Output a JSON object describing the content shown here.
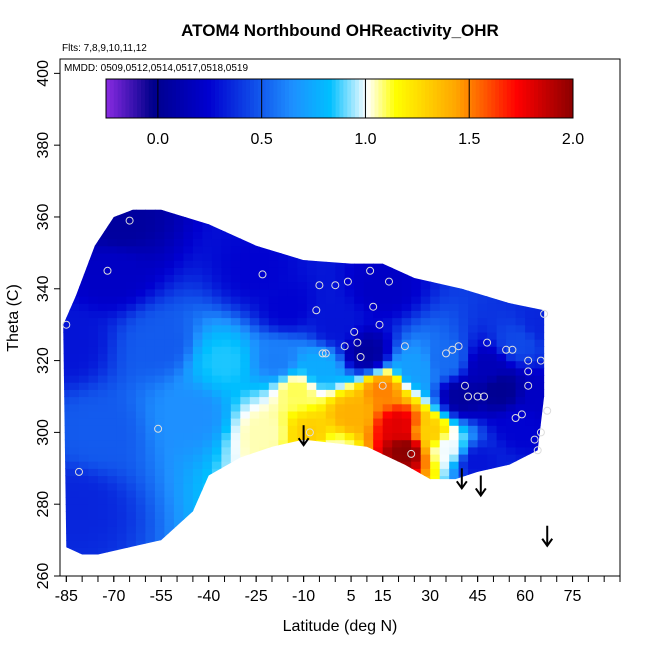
{
  "chart_data": {
    "type": "heatmap",
    "title": "ATOM4 Northbound OHReactivity_OHR",
    "subtitle_flights": "Flts: 7,8,9,10,11,12",
    "subtitle_dates": "MMDD: 0509,0512,0514,0517,0518,0519",
    "xlabel": "Latitude (deg N)",
    "ylabel": "Theta (C)",
    "xlim": [
      -87,
      90
    ],
    "ylim": [
      260,
      404
    ],
    "x_ticks": [
      -85,
      -70,
      -55,
      -40,
      -25,
      -10,
      5,
      15,
      30,
      45,
      60,
      75
    ],
    "x_tick_labels": [
      "-85",
      "-70",
      "-55",
      "-40",
      "-25",
      "-10",
      "5",
      "15",
      "30",
      "45",
      "60",
      "75"
    ],
    "y_ticks": [
      260,
      280,
      300,
      320,
      340,
      360,
      380,
      400
    ],
    "y_tick_labels": [
      "260",
      "280",
      "300",
      "320",
      "340",
      "360",
      "380",
      "400"
    ],
    "colorbar": {
      "range": [
        -0.25,
        2.0
      ],
      "ticks": [
        0.0,
        0.5,
        1.0,
        1.5,
        2.0
      ],
      "tick_labels": [
        "0.0",
        "0.5",
        "1.0",
        "1.5",
        "2.0"
      ],
      "colors": [
        "#8a2be2",
        "#00008b",
        "#0000d0",
        "#1e90ff",
        "#00bfff",
        "#ffffff",
        "#ffff00",
        "#ffa500",
        "#ff0000",
        "#8b0000"
      ]
    },
    "field_points": [
      {
        "lat": -85,
        "theta": 325,
        "value": 0.3
      },
      {
        "lat": -82,
        "theta": 280,
        "value": 0.35
      },
      {
        "lat": -75,
        "theta": 300,
        "value": 0.5
      },
      {
        "lat": -70,
        "theta": 345,
        "value": 0.2
      },
      {
        "lat": -68,
        "theta": 358,
        "value": 0.05
      },
      {
        "lat": -55,
        "theta": 325,
        "value": 0.5
      },
      {
        "lat": -45,
        "theta": 305,
        "value": 0.65
      },
      {
        "lat": -35,
        "theta": 320,
        "value": 0.85
      },
      {
        "lat": -25,
        "theta": 345,
        "value": 0.25
      },
      {
        "lat": -22,
        "theta": 300,
        "value": 1.05
      },
      {
        "lat": -18,
        "theta": 320,
        "value": 0.6
      },
      {
        "lat": -15,
        "theta": 335,
        "value": 0.25
      },
      {
        "lat": -12,
        "theta": 312,
        "value": 1.1
      },
      {
        "lat": -8,
        "theta": 300,
        "value": 1.3
      },
      {
        "lat": -5,
        "theta": 318,
        "value": 0.75
      },
      {
        "lat": 0,
        "theta": 295,
        "value": 1.05
      },
      {
        "lat": 0,
        "theta": 330,
        "value": 0.3
      },
      {
        "lat": 5,
        "theta": 305,
        "value": 1.4
      },
      {
        "lat": 10,
        "theta": 322,
        "value": 0.05
      },
      {
        "lat": 15,
        "theta": 312,
        "value": 1.5
      },
      {
        "lat": 15,
        "theta": 340,
        "value": 0.2
      },
      {
        "lat": 20,
        "theta": 302,
        "value": 1.8
      },
      {
        "lat": 22,
        "theta": 295,
        "value": 2.0
      },
      {
        "lat": 25,
        "theta": 318,
        "value": 0.7
      },
      {
        "lat": 30,
        "theta": 300,
        "value": 1.3
      },
      {
        "lat": 35,
        "theta": 296,
        "value": 1.0
      },
      {
        "lat": 35,
        "theta": 320,
        "value": 0.55
      },
      {
        "lat": 40,
        "theta": 310,
        "value": 0.05
      },
      {
        "lat": 45,
        "theta": 292,
        "value": 0.3
      },
      {
        "lat": 48,
        "theta": 318,
        "value": 0.15
      },
      {
        "lat": 52,
        "theta": 312,
        "value": 0.0
      },
      {
        "lat": 58,
        "theta": 302,
        "value": 0.25
      },
      {
        "lat": 58,
        "theta": 325,
        "value": 0.45
      },
      {
        "lat": 65,
        "theta": 310,
        "value": 0.2
      },
      {
        "lat": 65,
        "theta": 330,
        "value": 0.35
      }
    ],
    "domain_boundary": [
      [
        -86,
        330
      ],
      [
        -82,
        338
      ],
      [
        -76,
        352
      ],
      [
        -70,
        360
      ],
      [
        -64,
        362
      ],
      [
        -55,
        362
      ],
      [
        -40,
        358
      ],
      [
        -25,
        352
      ],
      [
        -10,
        348
      ],
      [
        5,
        347
      ],
      [
        15,
        347
      ],
      [
        25,
        343
      ],
      [
        40,
        340
      ],
      [
        55,
        336
      ],
      [
        66,
        334
      ],
      [
        66,
        310
      ],
      [
        64,
        295
      ],
      [
        55,
        291
      ],
      [
        45,
        289
      ],
      [
        38,
        287
      ],
      [
        30,
        287
      ],
      [
        22,
        291
      ],
      [
        10,
        296
      ],
      [
        0,
        297
      ],
      [
        -10,
        298
      ],
      [
        -20,
        296
      ],
      [
        -30,
        293
      ],
      [
        -40,
        288
      ],
      [
        -45,
        278
      ],
      [
        -55,
        270
      ],
      [
        -65,
        268
      ],
      [
        -75,
        266
      ],
      [
        -80,
        266
      ],
      [
        -85,
        268
      ]
    ],
    "observation_points": [
      {
        "lat": -85,
        "theta": 330
      },
      {
        "lat": -81,
        "theta": 289
      },
      {
        "lat": -72,
        "theta": 345
      },
      {
        "lat": -65,
        "theta": 359
      },
      {
        "lat": -56,
        "theta": 301
      },
      {
        "lat": -23,
        "theta": 344
      },
      {
        "lat": -5,
        "theta": 341
      },
      {
        "lat": -6,
        "theta": 334
      },
      {
        "lat": -4,
        "theta": 322
      },
      {
        "lat": -3,
        "theta": 322
      },
      {
        "lat": 0,
        "theta": 341
      },
      {
        "lat": 4,
        "theta": 342
      },
      {
        "lat": 3,
        "theta": 324
      },
      {
        "lat": 6,
        "theta": 328
      },
      {
        "lat": 8,
        "theta": 321
      },
      {
        "lat": 7,
        "theta": 325
      },
      {
        "lat": 11,
        "theta": 345
      },
      {
        "lat": 12,
        "theta": 335
      },
      {
        "lat": 14,
        "theta": 330
      },
      {
        "lat": 15,
        "theta": 313
      },
      {
        "lat": 17,
        "theta": 342
      },
      {
        "lat": 22,
        "theta": 324
      },
      {
        "lat": 24,
        "theta": 294
      },
      {
        "lat": 35,
        "theta": 322
      },
      {
        "lat": 37,
        "theta": 323
      },
      {
        "lat": 39,
        "theta": 324
      },
      {
        "lat": 41,
        "theta": 313
      },
      {
        "lat": 42,
        "theta": 310
      },
      {
        "lat": 45,
        "theta": 310
      },
      {
        "lat": 47,
        "theta": 310
      },
      {
        "lat": 48,
        "theta": 325
      },
      {
        "lat": 54,
        "theta": 323
      },
      {
        "lat": 56,
        "theta": 323
      },
      {
        "lat": 57,
        "theta": 304
      },
      {
        "lat": 59,
        "theta": 305
      },
      {
        "lat": 61,
        "theta": 320
      },
      {
        "lat": 61,
        "theta": 317
      },
      {
        "lat": 61,
        "theta": 313
      },
      {
        "lat": 63,
        "theta": 298
      },
      {
        "lat": 64,
        "theta": 295
      },
      {
        "lat": 65,
        "theta": 320
      },
      {
        "lat": 65,
        "theta": 300
      },
      {
        "lat": 66,
        "theta": 333
      },
      {
        "lat": 67,
        "theta": 306
      },
      {
        "lat": -8,
        "theta": 300
      }
    ],
    "arrows": [
      {
        "lat": -10,
        "theta": 302
      },
      {
        "lat": 40,
        "theta": 290
      },
      {
        "lat": 46,
        "theta": 288
      },
      {
        "lat": 67,
        "theta": 274
      }
    ]
  }
}
